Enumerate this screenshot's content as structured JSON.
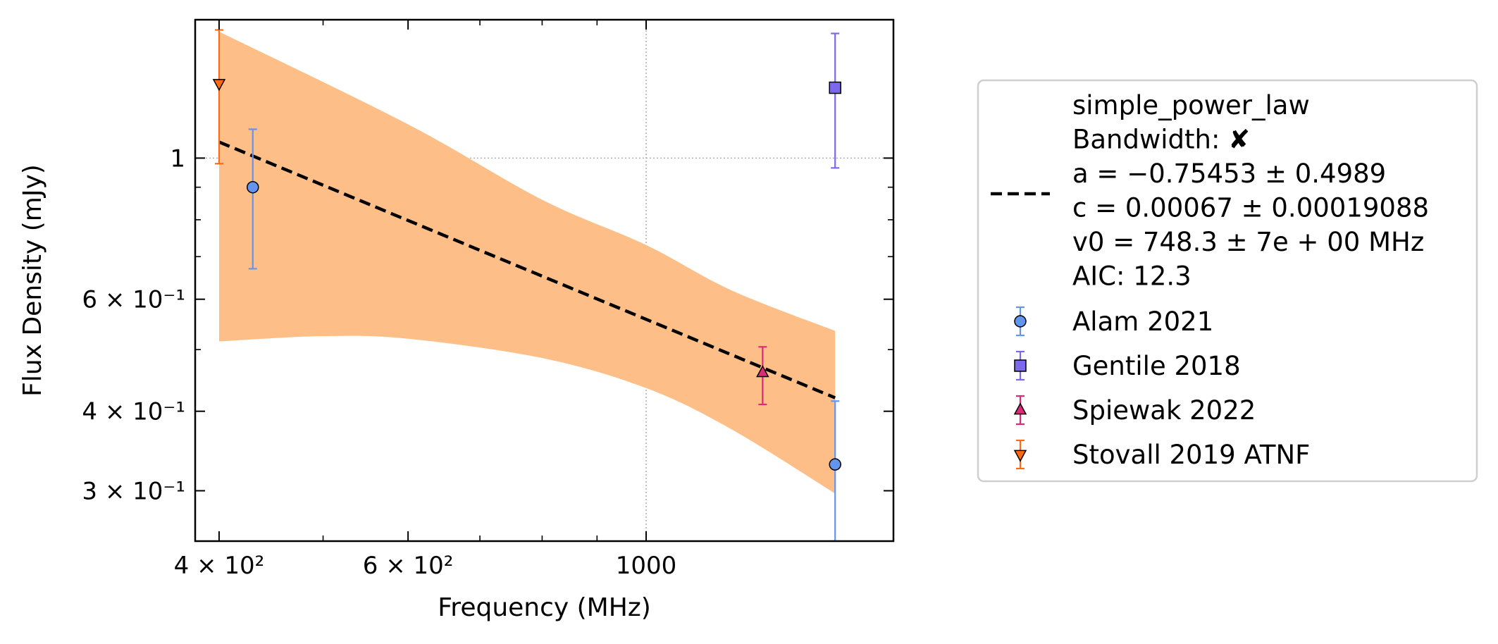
{
  "chart_data": {
    "type": "scatter",
    "xscale": "log",
    "yscale": "log",
    "xlim": [
      380,
      1700
    ],
    "ylim": [
      0.25,
      1.65
    ],
    "xlabel": "Frequency (MHz)",
    "ylabel": "Flux Density (mJy)",
    "xticks": [
      {
        "value": 400,
        "label": "4 × 10²"
      },
      {
        "value": 600,
        "label": "6 × 10²"
      },
      {
        "value": 1000,
        "label": "1000"
      }
    ],
    "yticks": [
      {
        "value": 0.3,
        "label": "3 × 10⁻¹"
      },
      {
        "value": 0.4,
        "label": "4 × 10⁻¹"
      },
      {
        "value": 0.6,
        "label": "6 × 10⁻¹"
      },
      {
        "value": 1.0,
        "label": "1"
      }
    ],
    "grid": "major-dotted",
    "legend_position": "outside-right",
    "fit": {
      "name": "simple_power_law",
      "label_lines": [
        "simple_power_law",
        "Bandwidth: ✘",
        "a = −0.75453 ± 0.4989",
        "c = 0.00067 ± 0.00019088",
        "v0 = 748.3 ± 7e + 00 MHz",
        "AIC: 12.3"
      ],
      "a": -0.75453,
      "c": 0.00067,
      "v0": 748.3,
      "color": "#000000",
      "linestyle": "dashed",
      "band_color": "#fdbf87",
      "x_range": [
        400,
        1500
      ],
      "line": [
        [
          400,
          1.06
        ],
        [
          1500,
          0.42
        ]
      ],
      "band_upper": [
        [
          400,
          1.58
        ],
        [
          600,
          1.13
        ],
        [
          800,
          0.86
        ],
        [
          1000,
          0.73
        ],
        [
          1200,
          0.62
        ],
        [
          1500,
          0.535
        ]
      ],
      "band_lower": [
        [
          400,
          0.515
        ],
        [
          500,
          0.525
        ],
        [
          600,
          0.52
        ],
        [
          800,
          0.485
        ],
        [
          1000,
          0.435
        ],
        [
          1200,
          0.375
        ],
        [
          1500,
          0.297
        ]
      ]
    },
    "series": [
      {
        "name": "Alam 2021",
        "marker": "circle",
        "color": "#6495ed",
        "points": [
          {
            "x": 430,
            "y": 0.9,
            "yerr_low": 0.67,
            "yerr_high": 1.11
          },
          {
            "x": 1500,
            "y": 0.33,
            "yerr_low": 0.25,
            "yerr_high": 0.415
          }
        ]
      },
      {
        "name": "Gentile 2018",
        "marker": "square",
        "color": "#7b68ee",
        "points": [
          {
            "x": 1500,
            "y": 1.29,
            "yerr_low": 0.965,
            "yerr_high": 1.57
          }
        ]
      },
      {
        "name": "Spiewak 2022",
        "marker": "triangle-up",
        "color": "#dc2a78",
        "points": [
          {
            "x": 1284,
            "y": 0.46,
            "yerr_low": 0.41,
            "yerr_high": 0.505
          }
        ]
      },
      {
        "name": "Stovall 2019 ATNF",
        "marker": "triangle-down",
        "color": "#ff6a13",
        "points": [
          {
            "x": 400,
            "y": 1.31,
            "yerr_low": 0.98,
            "yerr_high": 1.59
          }
        ]
      }
    ]
  }
}
